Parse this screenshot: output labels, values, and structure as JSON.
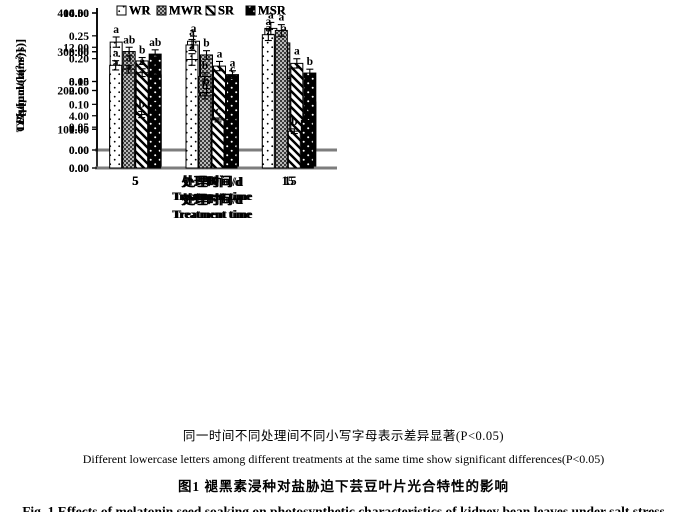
{
  "figure": {
    "caption_cn_note": "同一时间不同处理间不同小写字母表示差异显著(P<0.05)",
    "caption_en_note": "Different lowercase letters among different treatments at the same time show significant differences(P<0.05)",
    "caption_cn_title": "图1  褪黑素浸种对盐胁迫下芸豆叶片光合特性的影响",
    "caption_en_title": "Fig. 1  Effects of melatonin seed soaking on photosynthetic characteristics of kidney bean leaves under salt stress"
  },
  "legend_labels": [
    "WR",
    "MWR",
    "SR",
    "MSR"
  ],
  "chart_data": [
    {
      "id": "pn",
      "type": "bar",
      "ylabel": "Pn/[μmol/(m²·s)]",
      "xlabel_cn": "处理时间/d",
      "xlabel_en": "Treatment time",
      "ylim": [
        0,
        16
      ],
      "ytick": 4,
      "decimals": 2,
      "grid": false,
      "legend_position": "top-inside",
      "categories": [
        "5",
        "10",
        "15"
      ],
      "series": [
        {
          "name": "WR",
          "pattern": "wr",
          "values": [
            12.6,
            12.7,
            14.2
          ],
          "errors": [
            0.6,
            0.6,
            0.7
          ],
          "letters": [
            "a",
            "a",
            "a"
          ]
        },
        {
          "name": "MWR",
          "pattern": "mwr",
          "values": [
            11.5,
            11.1,
            12.5
          ],
          "errors": [
            0.5,
            0.5,
            0.8
          ],
          "letters": [
            "ab",
            "b",
            "a"
          ]
        },
        {
          "name": "SR",
          "pattern": "sr",
          "values": [
            10.4,
            7.3,
            5.1
          ],
          "errors": [
            0.4,
            0.3,
            0.2
          ],
          "letters": [
            "b",
            "c",
            "b"
          ]
        },
        {
          "name": "MSR",
          "pattern": "msr",
          "values": [
            11.2,
            8.2,
            5.6
          ],
          "errors": [
            0.5,
            0.4,
            0.3
          ],
          "letters": [
            "ab",
            "c",
            "b"
          ]
        }
      ]
    },
    {
      "id": "gs",
      "type": "bar",
      "ylabel": "Gs/[μmol/(m²·s)]",
      "xlabel_cn": "处理时间/d",
      "xlabel_en": "Treatment time",
      "ylim": [
        0,
        0.3
      ],
      "ytick": 0.05,
      "decimals": 2,
      "grid": false,
      "legend_position": "top-inside",
      "categories": [
        "5",
        "10",
        "15"
      ],
      "series": [
        {
          "name": "WR",
          "pattern": "wr",
          "values": [
            0.165,
            0.23,
            0.238
          ],
          "errors": [
            0.01,
            0.012,
            0.013
          ],
          "letters": [
            "a",
            "a",
            "a"
          ]
        },
        {
          "name": "MWR",
          "pattern": "mwr",
          "values": [
            0.157,
            0.161,
            0.223
          ],
          "errors": [
            0.008,
            0.008,
            0.012
          ],
          "letters": [
            "a",
            "b",
            "a"
          ]
        },
        {
          "name": "SR",
          "pattern": "sr",
          "values": [
            0.144,
            0.093,
            0.057
          ],
          "errors": [
            0.008,
            0.005,
            0.003
          ],
          "letters": [
            "a",
            "c",
            "b"
          ]
        },
        {
          "name": "MSR",
          "pattern": "msr",
          "values": [
            0.156,
            0.111,
            0.067
          ],
          "errors": [
            0.008,
            0.007,
            0.004
          ],
          "letters": [
            "a",
            "c",
            "b"
          ]
        }
      ]
    },
    {
      "id": "ci",
      "type": "bar",
      "ylabel": "Ci/[μmol/(m²·s)]",
      "xlabel_cn": "处理时间/d",
      "xlabel_en": "Treatment time",
      "ylim": [
        0,
        400
      ],
      "ytick": 100,
      "decimals": 2,
      "grid": false,
      "legend_position": "top-inside",
      "categories": [
        "5",
        "10",
        "15"
      ],
      "series": [
        {
          "name": "WR",
          "pattern": "wr",
          "values": [
            155,
            194,
            219
          ],
          "errors": [
            8,
            10,
            12
          ],
          "letters": [
            "b",
            "b",
            "d"
          ]
        },
        {
          "name": "MWR",
          "pattern": "mwr",
          "values": [
            160,
            195,
            231
          ],
          "errors": [
            9,
            10,
            10
          ],
          "letters": [
            "b",
            "b",
            "c"
          ]
        },
        {
          "name": "SR",
          "pattern": "sr",
          "values": [
            246,
            263,
            270
          ],
          "errors": [
            10,
            12,
            12
          ],
          "letters": [
            "a",
            "a",
            "a"
          ]
        },
        {
          "name": "MSR",
          "pattern": "msr",
          "values": [
            240,
            241,
            245
          ],
          "errors": [
            10,
            10,
            10
          ],
          "letters": [
            "a",
            "a",
            "b"
          ]
        }
      ]
    },
    {
      "id": "tr",
      "type": "bar",
      "ylabel": "Tr/[μmol/(m²·s)]",
      "xlabel_cn": "处理时间/d",
      "xlabel_en": "Treatment time",
      "ylim": [
        0,
        4
      ],
      "ytick": 1,
      "decimals": 2,
      "grid": false,
      "legend_position": "top-inside",
      "categories": [
        "5",
        "10",
        "15"
      ],
      "series": [
        {
          "name": "WR",
          "pattern": "wr",
          "values": [
            2.65,
            2.8,
            3.44
          ],
          "errors": [
            0.12,
            0.15,
            0.15
          ],
          "letters": [
            "a",
            "a",
            "a"
          ]
        },
        {
          "name": "MWR",
          "pattern": "mwr",
          "values": [
            2.55,
            1.86,
            3.55
          ],
          "errors": [
            0.1,
            0.08,
            0.15
          ],
          "letters": [
            "a",
            "b",
            "a"
          ]
        },
        {
          "name": "SR",
          "pattern": "sr",
          "values": [
            1.38,
            1.24,
            0.95
          ],
          "errors": [
            0.08,
            0.05,
            0.06
          ],
          "letters": [
            "b",
            "c",
            "b"
          ]
        },
        {
          "name": "MSR",
          "pattern": "msr",
          "values": [
            1.55,
            1.27,
            1.23
          ],
          "errors": [
            0.08,
            0.06,
            0.05
          ],
          "letters": [
            "b",
            "c",
            "b"
          ]
        }
      ]
    }
  ]
}
